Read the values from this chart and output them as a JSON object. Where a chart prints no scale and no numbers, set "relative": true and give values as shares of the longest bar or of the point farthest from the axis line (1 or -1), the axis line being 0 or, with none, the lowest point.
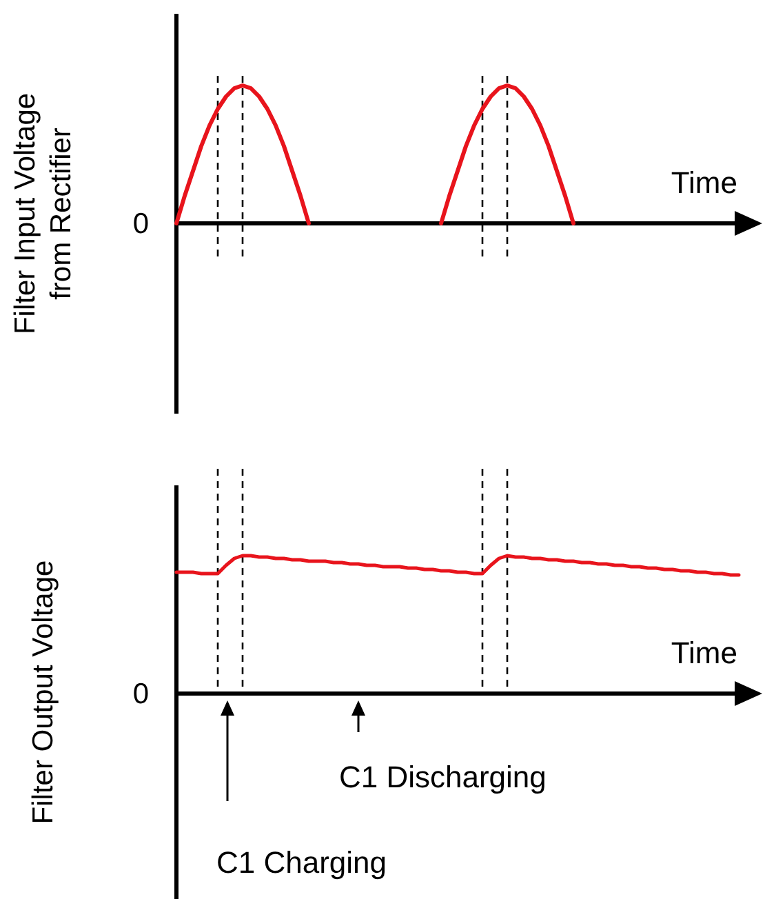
{
  "chart_data": [
    {
      "type": "line",
      "relative": true,
      "grid": "x",
      "ylabel": "Filter Input Voltage\nfrom Rectifier",
      "xlabel": "Time",
      "categories": [
        null,
        null,
        null,
        null,
        null,
        null,
        null,
        null,
        null,
        null,
        null,
        null,
        null,
        null,
        null,
        null,
        null,
        null,
        null,
        null,
        null,
        null,
        null,
        null,
        null,
        null,
        null,
        null,
        null,
        null,
        null,
        null,
        null,
        null,
        null,
        null,
        null,
        null,
        null,
        null,
        null,
        null,
        null,
        null,
        null,
        null,
        null,
        null,
        null,
        null,
        null,
        null,
        null,
        null,
        null,
        null,
        null,
        null,
        null,
        null,
        null,
        null,
        null,
        null,
        null,
        null,
        null,
        null,
        null,
        null,
        null
      ],
      "series": [
        {
          "color": "#e8141c",
          "values": [
            0,
            0.2,
            0.38,
            0.56,
            0.71,
            0.83,
            0.92,
            0.98,
            1,
            0.98,
            0.92,
            0.83,
            0.71,
            0.56,
            0.38,
            0.2,
            0,
            null,
            null,
            null,
            null,
            null,
            null,
            null,
            null,
            null,
            null,
            null,
            null,
            null,
            null,
            null,
            null,
            null,
            null,
            null,
            null,
            null,
            null,
            null,
            null,
            null,
            null,
            null,
            null,
            null,
            null,
            null,
            null,
            null,
            null,
            null,
            null,
            null,
            null,
            null,
            null,
            null,
            null,
            null,
            null,
            null,
            null,
            null,
            null,
            null,
            null,
            null,
            null,
            null,
            null
          ]
        },
        {
          "color": "#e8141c",
          "values": [
            null,
            null,
            null,
            null,
            null,
            null,
            null,
            null,
            null,
            null,
            null,
            null,
            null,
            null,
            null,
            null,
            null,
            null,
            null,
            null,
            null,
            null,
            null,
            null,
            null,
            null,
            null,
            null,
            null,
            null,
            null,
            null,
            0,
            0.2,
            0.38,
            0.56,
            0.71,
            0.83,
            0.92,
            0.98,
            1,
            0.98,
            0.92,
            0.83,
            0.71,
            0.56,
            0.38,
            0.2,
            0,
            null,
            null,
            null,
            null,
            null,
            null,
            null,
            null,
            null,
            null,
            null,
            null,
            null,
            null,
            null,
            null,
            null,
            null,
            null,
            null,
            null,
            null
          ]
        }
      ],
      "annotations": [
        "0"
      ]
    },
    {
      "type": "line",
      "relative": true,
      "grid": "x",
      "ylabel": "Filter Output Voltage",
      "xlabel": "Time",
      "categories": [
        null,
        null,
        null,
        null,
        null,
        null,
        null,
        null,
        null,
        null,
        null,
        null,
        null,
        null,
        null,
        null,
        null,
        null,
        null,
        null,
        null,
        null,
        null,
        null,
        null,
        null,
        null,
        null,
        null,
        null,
        null,
        null,
        null,
        null,
        null,
        null,
        null,
        null,
        null,
        null,
        null,
        null,
        null,
        null,
        null,
        null,
        null,
        null,
        null,
        null,
        null,
        null,
        null,
        null,
        null,
        null,
        null,
        null,
        null,
        null,
        null,
        null,
        null,
        null,
        null,
        null,
        null,
        null,
        null,
        null,
        null
      ],
      "series": [
        {
          "color": "#e8141c",
          "values": [
            0.88,
            0.88,
            0.88,
            0.87,
            0.87,
            0.87,
            0.93,
            0.98,
            1,
            1,
            0.99,
            0.99,
            0.98,
            0.98,
            0.97,
            0.97,
            0.96,
            0.96,
            0.96,
            0.95,
            0.95,
            0.94,
            0.94,
            0.93,
            0.93,
            0.92,
            0.92,
            0.92,
            0.91,
            0.91,
            0.9,
            0.9,
            0.89,
            0.89,
            0.88,
            0.88,
            0.87,
            0.87,
            0.93,
            0.98,
            1,
            0.99,
            0.99,
            0.98,
            0.98,
            0.97,
            0.97,
            0.96,
            0.96,
            0.95,
            0.95,
            0.94,
            0.94,
            0.93,
            0.93,
            0.92,
            0.92,
            0.91,
            0.91,
            0.9,
            0.9,
            0.89,
            0.89,
            0.88,
            0.88,
            0.87,
            0.87,
            0.86,
            0.86,
            null,
            null
          ]
        }
      ],
      "annotations": [
        "0",
        "C1 Charging",
        "C1 Discharging"
      ]
    }
  ]
}
